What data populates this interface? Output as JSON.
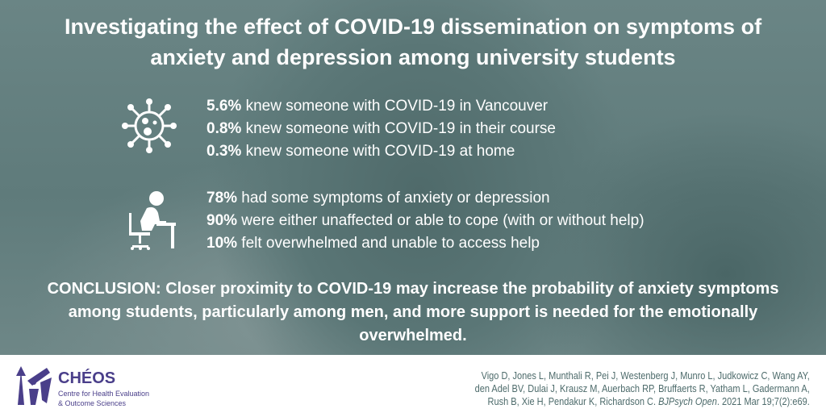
{
  "title": {
    "line1": "Investigating the effect of COVID-19 dissemination on symptoms of",
    "line2": "anxiety and depression among university students"
  },
  "group1": {
    "icon": "virus-icon",
    "items": [
      {
        "bold": "5.6%",
        "text": " knew someone with COVID-19 in Vancouver"
      },
      {
        "bold": "0.8%",
        "text": " knew someone with COVID-19 in their course"
      },
      {
        "bold": "0.3%",
        "text": " knew someone with COVID-19 at home"
      }
    ]
  },
  "group2": {
    "icon": "person-at-desk-icon",
    "items": [
      {
        "bold": "78%",
        "text": " had some symptoms of anxiety or depression"
      },
      {
        "bold": "90%",
        "text": " were either unaffected or able to cope (with or without help)"
      },
      {
        "bold": "10%",
        "text": " felt overwhelmed and unable to access help"
      }
    ]
  },
  "conclusion": "CONCLUSION: Closer proximity to COVID-19 may increase the probability of anxiety symptoms among students, particularly among men, and more support is needed for the emotionally overwhelmed.",
  "logo": {
    "name": "CHÉOS",
    "sub1": "Centre for Health Evaluation",
    "sub2": "& Outcome Sciences"
  },
  "citation": {
    "line1": "Vigo D, Jones L, Munthali R, Pei J, Westenberg J, Munro L, Judkowicz C, Wang AY,",
    "line2": "den Adel BV, Dulai J, Krausz M, Auerbach RP, Bruffaerts R, Yatham L, Gadermann A,",
    "line3a": "Rush B, Xie H, Pendakur K, Richardson C. ",
    "journal": "BJPsych Open",
    "line3b": ". 2021 Mar 19;7(2):e69."
  },
  "colors": {
    "brand": "#4a3f8a",
    "citation": "#4d6b6b"
  }
}
